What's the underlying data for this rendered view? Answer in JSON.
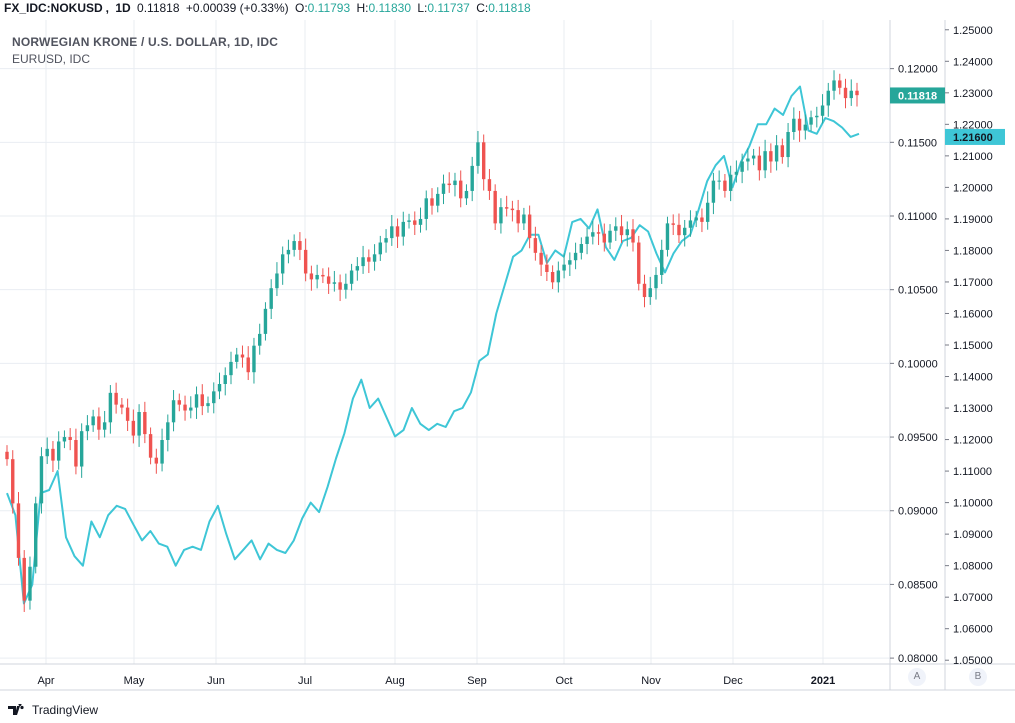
{
  "header": {
    "symbol": "FX_IDC:NOKUSD",
    "interval": "1D",
    "last": "0.11818",
    "change": "+0.00039 (+0.33%)",
    "open_label": "O:",
    "open": "0.11793",
    "high_label": "H:",
    "high": "0.11830",
    "low_label": "L:",
    "low": "0.11737",
    "close_label": "C:",
    "close": "0.11818"
  },
  "footer": {
    "brand": "TradingView"
  },
  "scale_buttons": {
    "a": "A",
    "b": "B"
  },
  "chart_data": {
    "type": "line",
    "title": "NORWEGIAN KRONE / U.S. DOLLAR, 1D, IDC",
    "subtitle": "EURUSD, IDC",
    "grid": true,
    "x_axis": {
      "tick_labels": [
        "Apr",
        "May",
        "Jun",
        "Jul",
        "Aug",
        "Sep",
        "Oct",
        "Nov",
        "Dec",
        "2021"
      ]
    },
    "y_axis_left": {
      "tick_labels": [
        "0.12000",
        "0.11500",
        "0.11000",
        "0.10500",
        "0.10000",
        "0.09500",
        "0.09000",
        "0.08500",
        "0.08000"
      ],
      "range": [
        0.0796,
        0.1233
      ]
    },
    "y_axis_right": {
      "tick_labels": [
        "1.25000",
        "1.24000",
        "1.23000",
        "1.22000",
        "1.21000",
        "1.20000",
        "1.19000",
        "1.18000",
        "1.17000",
        "1.16000",
        "1.15000",
        "1.14000",
        "1.13000",
        "1.12000",
        "1.11000",
        "1.10000",
        "1.09000",
        "1.08000",
        "1.07000",
        "1.06000",
        "1.05000"
      ],
      "range": [
        1.0488,
        1.2531
      ]
    },
    "series": [
      {
        "name": "NOKUSD",
        "style": "candlestick",
        "up_color": "#26a69a",
        "down_color": "#ef5350",
        "last_value_label": "0.11818",
        "close": [
          0.0935,
          0.0905,
          0.0868,
          0.0839,
          0.0862,
          0.0905,
          0.0937,
          0.0942,
          0.0934,
          0.0947,
          0.095,
          0.0948,
          0.093,
          0.0954,
          0.0958,
          0.0964,
          0.0955,
          0.096,
          0.098,
          0.0972,
          0.097,
          0.0961,
          0.0951,
          0.0967,
          0.0952,
          0.0936,
          0.0932,
          0.0948,
          0.096,
          0.0975,
          0.0972,
          0.0968,
          0.097,
          0.0979,
          0.0971,
          0.0973,
          0.0981,
          0.0986,
          0.0992,
          0.1001,
          0.1006,
          0.1004,
          0.0994,
          0.1012,
          0.102,
          0.1037,
          0.1051,
          0.1061,
          0.1074,
          0.1077,
          0.1083,
          0.1077,
          0.1061,
          0.1057,
          0.106,
          0.1059,
          0.1054,
          0.1055,
          0.105,
          0.1054,
          0.1063,
          0.1066,
          0.1072,
          0.1069,
          0.1074,
          0.1082,
          0.1085,
          0.1093,
          0.1086,
          0.1096,
          0.1097,
          0.1094,
          0.1098,
          0.1112,
          0.1107,
          0.1115,
          0.1122,
          0.1121,
          0.1124,
          0.1112,
          0.1117,
          0.1134,
          0.115,
          0.1125,
          0.1117,
          0.1095,
          0.1106,
          0.1105,
          0.1104,
          0.1095,
          0.1101,
          0.1085,
          0.1075,
          0.1067,
          0.1062,
          0.1055,
          0.1063,
          0.1067,
          0.107,
          0.1075,
          0.1081,
          0.1086,
          0.1089,
          0.1088,
          0.1082,
          0.109,
          0.1093,
          0.1087,
          0.1091,
          0.1082,
          0.1054,
          0.1045,
          0.1051,
          0.106,
          0.1077,
          0.1095,
          0.1094,
          0.1087,
          0.1092,
          0.1097,
          0.1099,
          0.1096,
          0.1109,
          0.1124,
          0.1124,
          0.1117,
          0.1128,
          0.113,
          0.1137,
          0.1139,
          0.1141,
          0.1131,
          0.1144,
          0.1137,
          0.1148,
          0.114,
          0.1157,
          0.1166,
          0.1158,
          0.1162,
          0.1167,
          0.1168,
          0.1175,
          0.1185,
          0.1192,
          0.1187,
          0.118,
          0.1185,
          0.1182
        ]
      },
      {
        "name": "EURUSD",
        "style": "line",
        "color": "#3ec6d6",
        "last_value_label": "1.21600",
        "values": [
          1.103,
          1.096,
          1.068,
          1.074,
          1.103,
          1.104,
          1.11,
          1.089,
          1.083,
          1.08,
          1.094,
          1.089,
          1.096,
          1.099,
          1.098,
          1.093,
          1.088,
          1.091,
          1.087,
          1.086,
          1.08,
          1.085,
          1.086,
          1.085,
          1.094,
          1.099,
          1.09,
          1.082,
          1.085,
          1.088,
          1.082,
          1.087,
          1.085,
          1.084,
          1.088,
          1.095,
          1.1,
          1.097,
          1.105,
          1.114,
          1.122,
          1.133,
          1.139,
          1.13,
          1.133,
          1.127,
          1.121,
          1.123,
          1.13,
          1.125,
          1.123,
          1.125,
          1.124,
          1.129,
          1.13,
          1.135,
          1.145,
          1.147,
          1.16,
          1.169,
          1.178,
          1.18,
          1.185,
          1.185,
          1.176,
          1.18,
          1.178,
          1.189,
          1.19,
          1.187,
          1.193,
          1.181,
          1.177,
          1.183,
          1.184,
          1.188,
          1.186,
          1.179,
          1.173,
          1.179,
          1.183,
          1.185,
          1.193,
          1.202,
          1.207,
          1.21,
          1.2,
          1.208,
          1.213,
          1.22,
          1.22,
          1.225,
          1.223,
          1.229,
          1.232,
          1.218,
          1.217,
          1.222,
          1.221,
          1.219,
          1.216,
          1.217
        ]
      }
    ]
  }
}
